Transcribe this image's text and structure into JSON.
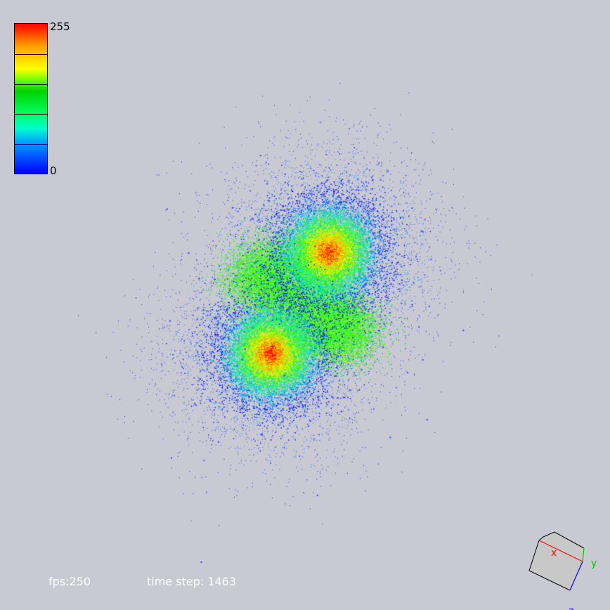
{
  "colorbar": {
    "max_label": "255",
    "min_label": "0",
    "stops": [
      "#0000ff",
      "#0096ff",
      "#00ffd0",
      "#00ff60",
      "#00d200",
      "#78ff00",
      "#ffff00",
      "#ffa000",
      "#ff0000"
    ]
  },
  "hud": {
    "fps": "fps:250",
    "time_step": "time step: 1463"
  },
  "axes": {
    "x_label": "x",
    "y_label": "y",
    "z_label": "z",
    "x_color": "#ff0000",
    "y_color": "#00c800",
    "z_color": "#0000ff"
  },
  "colors": {
    "background": "#c9c9d3"
  }
}
